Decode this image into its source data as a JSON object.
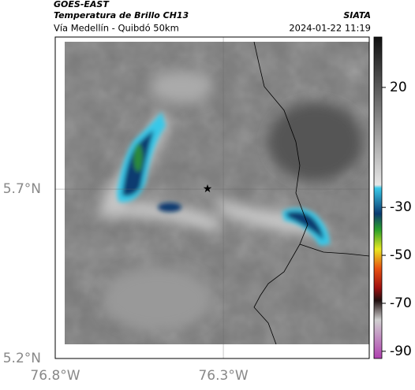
{
  "header": {
    "product": "GOES-EAST",
    "title": "Temperatura de Brillo CH13",
    "source": "SIATA",
    "subtitle": "Vía Medellín - Quibdó 50km",
    "datetime": "2024-01-22 11:19"
  },
  "map": {
    "xlim": [
      -76.8,
      -75.866
    ],
    "ylim": [
      5.2,
      6.149
    ],
    "xticks": [
      {
        "value": -76.8,
        "label": "76.8°W"
      },
      {
        "value": -76.3,
        "label": "76.3°W"
      }
    ],
    "yticks": [
      {
        "value": 5.2,
        "label": "5.2°N"
      },
      {
        "value": 5.7,
        "label": "5.7°N"
      }
    ],
    "grid": true,
    "marker": {
      "lon": -76.347,
      "lat": 5.7
    }
  },
  "colorbar": {
    "clim": [
      -93,
      41
    ],
    "ticks": [
      20,
      -30,
      -50,
      -70,
      -90
    ]
  }
}
